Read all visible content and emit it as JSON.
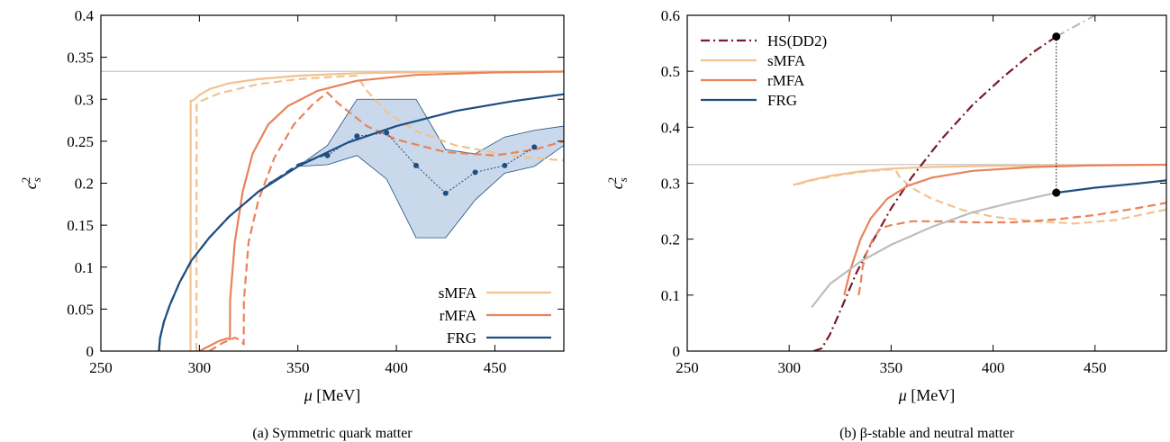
{
  "colors": {
    "smfa": "#f2c28f",
    "rmfa": "#e8835a",
    "frg": "#1f4e82",
    "hs": "#7a1a2a",
    "band": "#c9d8ea",
    "ref": "#c0c0c0",
    "gray": "#bdbdbd"
  },
  "chart_data": [
    {
      "type": "line",
      "caption": "(a) Symmetric quark matter",
      "xlabel": "μ [MeV]",
      "ylabel": "c_s^2",
      "xlim": [
        250,
        485
      ],
      "ylim": [
        0,
        0.4
      ],
      "xticks": [
        "250",
        "300",
        "350",
        "400",
        "450"
      ],
      "yticks": [
        "0",
        "0.05",
        "0.1",
        "0.15",
        "0.2",
        "0.25",
        "0.3",
        "0.35",
        "0.4"
      ],
      "legend": [
        "sMFA",
        "rMFA",
        "FRG"
      ],
      "legend_position": "bottom-right",
      "reference_line": 0.3333,
      "series": [
        {
          "name": "sMFA",
          "style": "solid",
          "color_key": "smfa",
          "x": [
            295.5,
            295.6,
            297,
            300,
            305,
            315,
            330,
            350,
            380,
            420,
            485
          ],
          "y": [
            0,
            0.298,
            0.299,
            0.305,
            0.312,
            0.319,
            0.324,
            0.328,
            0.331,
            0.3325,
            0.333
          ]
        },
        {
          "name": "sMFA",
          "style": "dashed",
          "color_key": "smfa",
          "x": [
            298.5,
            298.6,
            301,
            310,
            330,
            350,
            370,
            380,
            385,
            395,
            410,
            430,
            460,
            485
          ],
          "y": [
            0,
            0.294,
            0.298,
            0.307,
            0.318,
            0.324,
            0.327,
            0.328,
            0.31,
            0.285,
            0.262,
            0.245,
            0.232,
            0.227
          ]
        },
        {
          "name": "rMFA",
          "style": "solid",
          "color_key": "rmfa",
          "x": [
            300,
            305,
            310,
            314,
            315.5,
            315.6,
            318,
            322,
            327,
            335,
            345,
            360,
            380,
            410,
            450,
            485
          ],
          "y": [
            0,
            0.006,
            0.012,
            0.015,
            0.014,
            0.06,
            0.13,
            0.19,
            0.235,
            0.27,
            0.292,
            0.31,
            0.322,
            0.329,
            0.332,
            0.333
          ]
        },
        {
          "name": "rMFA",
          "style": "dashed",
          "color_key": "rmfa",
          "x": [
            305,
            312,
            318,
            321,
            322.5,
            322.6,
            325,
            330,
            338,
            348,
            358,
            365,
            370,
            385,
            400,
            425,
            450,
            470,
            485
          ],
          "y": [
            0,
            0.01,
            0.016,
            0.013,
            0.008,
            0.06,
            0.13,
            0.18,
            0.23,
            0.27,
            0.295,
            0.308,
            0.296,
            0.268,
            0.252,
            0.237,
            0.233,
            0.24,
            0.25
          ]
        },
        {
          "name": "FRG",
          "style": "solid",
          "color_key": "frg",
          "x": [
            279.5,
            280,
            282,
            285,
            290,
            296,
            305,
            315,
            330,
            350,
            375,
            400,
            430,
            460,
            485
          ],
          "y": [
            0,
            0.015,
            0.035,
            0.055,
            0.082,
            0.108,
            0.135,
            0.16,
            0.19,
            0.22,
            0.248,
            0.268,
            0.286,
            0.298,
            0.306
          ]
        },
        {
          "name": "FRG",
          "style": "dashed",
          "color_key": "frg",
          "x": [
            279.5,
            280,
            282,
            285,
            290,
            296,
            305,
            315,
            330,
            350,
            365
          ],
          "y": [
            0,
            0.015,
            0.035,
            0.055,
            0.082,
            0.108,
            0.135,
            0.16,
            0.19,
            0.222,
            0.235
          ]
        }
      ],
      "band": {
        "x": [
          335,
          350,
          365,
          380,
          395,
          410,
          425,
          440,
          455,
          470,
          485
        ],
        "upper": [
          0.2,
          0.22,
          0.245,
          0.3,
          0.3,
          0.3,
          0.24,
          0.235,
          0.255,
          0.263,
          0.268
        ],
        "lower": [
          0.2,
          0.22,
          0.222,
          0.233,
          0.205,
          0.135,
          0.135,
          0.18,
          0.212,
          0.22,
          0.245
        ]
      },
      "points": {
        "x": [
          365,
          380,
          395,
          410,
          425,
          440,
          455,
          470
        ],
        "y": [
          0.233,
          0.256,
          0.26,
          0.221,
          0.188,
          0.213,
          0.221,
          0.243
        ]
      }
    },
    {
      "type": "line",
      "caption": "(b) β-stable and neutral matter",
      "xlabel": "μ [MeV]",
      "ylabel": "c_s^2",
      "xlim": [
        250,
        485
      ],
      "ylim": [
        0,
        0.6
      ],
      "xticks": [
        "250",
        "300",
        "350",
        "400",
        "450"
      ],
      "yticks": [
        "0",
        "0.1",
        "0.2",
        "0.3",
        "0.4",
        "0.5",
        "0.6"
      ],
      "legend": [
        "HS(DD2)",
        "sMFA",
        "rMFA",
        "FRG"
      ],
      "legend_position": "top-left",
      "reference_line": 0.3333,
      "series": [
        {
          "name": "HS(DD2)",
          "style": "dashdot",
          "color_key": "hs",
          "x": [
            312,
            316,
            320,
            326,
            333,
            340,
            350,
            360,
            375,
            390,
            405,
            420,
            431
          ],
          "y": [
            0,
            0.005,
            0.03,
            0.08,
            0.14,
            0.19,
            0.255,
            0.31,
            0.38,
            0.44,
            0.49,
            0.535,
            0.562
          ]
        },
        {
          "name": "HS(DD2) continued",
          "style": "dashdot",
          "color_key": "gray",
          "x": [
            431,
            440,
            450
          ],
          "y": [
            0.562,
            0.58,
            0.6
          ]
        },
        {
          "name": "sMFA",
          "style": "solid",
          "color_key": "smfa",
          "x": [
            302,
            310,
            320,
            335,
            350,
            370,
            400,
            450,
            485
          ],
          "y": [
            0.297,
            0.305,
            0.313,
            0.321,
            0.326,
            0.329,
            0.331,
            0.332,
            0.333
          ]
        },
        {
          "name": "sMFA",
          "style": "dashed",
          "color_key": "smfa",
          "x": [
            304,
            312,
            325,
            340,
            352,
            354,
            360,
            370,
            385,
            400,
            420,
            440,
            460,
            485
          ],
          "y": [
            0.298,
            0.306,
            0.315,
            0.322,
            0.325,
            0.312,
            0.292,
            0.272,
            0.252,
            0.24,
            0.232,
            0.228,
            0.234,
            0.253
          ]
        },
        {
          "name": "rMFA",
          "style": "solid",
          "color_key": "rmfa",
          "x": [
            327,
            330,
            335,
            340,
            348,
            358,
            370,
            390,
            420,
            450,
            485
          ],
          "y": [
            0.1,
            0.145,
            0.2,
            0.237,
            0.272,
            0.295,
            0.31,
            0.322,
            0.329,
            0.332,
            0.333
          ]
        },
        {
          "name": "rMFA",
          "style": "dashed",
          "color_key": "rmfa",
          "x": [
            334,
            335,
            336,
            338,
            341,
            345,
            350,
            360,
            375,
            390,
            410,
            430,
            450,
            470,
            485
          ],
          "y": [
            0.1,
            0.118,
            0.15,
            0.175,
            0.2,
            0.22,
            0.225,
            0.232,
            0.232,
            0.23,
            0.23,
            0.235,
            0.243,
            0.255,
            0.265
          ]
        },
        {
          "name": "FRG low-density",
          "style": "solid",
          "color_key": "gray",
          "x": [
            311,
            320,
            335,
            350,
            370,
            390,
            410,
            431
          ],
          "y": [
            0.078,
            0.12,
            0.16,
            0.19,
            0.222,
            0.248,
            0.266,
            0.283
          ]
        },
        {
          "name": "FRG",
          "style": "solid",
          "color_key": "frg",
          "x": [
            431,
            450,
            470,
            485
          ],
          "y": [
            0.283,
            0.292,
            0.299,
            0.305
          ]
        }
      ],
      "markers": {
        "x": [
          431,
          431
        ],
        "y": [
          0.562,
          0.283
        ]
      }
    }
  ]
}
